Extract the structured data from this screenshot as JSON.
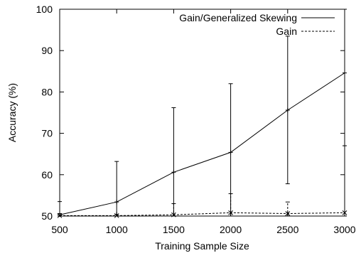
{
  "chart_data": {
    "type": "line",
    "title": "",
    "xlabel": "Training Sample Size",
    "ylabel": "Accuracy (%)",
    "xlim": [
      500,
      3000
    ],
    "ylim": [
      50,
      100
    ],
    "xticks": [
      500,
      1000,
      1500,
      2000,
      2500,
      3000
    ],
    "yticks": [
      50,
      60,
      70,
      80,
      90,
      100
    ],
    "grid": false,
    "legend_position": "top-right",
    "series": [
      {
        "name": "Gain/Generalized Skewing",
        "line_style": "solid",
        "marker": "plus",
        "color": "#000000",
        "x": [
          500,
          1000,
          1500,
          2000,
          2500,
          3000
        ],
        "y": [
          50.3,
          53.4,
          60.6,
          65.4,
          75.6,
          84.6
        ],
        "err_low": [
          50.0,
          50.0,
          50.0,
          50.0,
          57.8,
          50.0
        ],
        "err_high": [
          50.6,
          63.2,
          76.2,
          82.0,
          93.5,
          100.0
        ]
      },
      {
        "name": "Gain",
        "line_style": "dashed",
        "marker": "x",
        "color": "#000000",
        "x": [
          500,
          1000,
          1500,
          2000,
          2500,
          3000
        ],
        "y": [
          50.1,
          50.1,
          50.3,
          50.8,
          50.6,
          50.8
        ],
        "err_low": [
          50.0,
          50.0,
          50.0,
          50.0,
          50.0,
          50.0
        ],
        "err_high": [
          53.5,
          50.4,
          53.0,
          55.4,
          53.4,
          67.0
        ]
      }
    ]
  }
}
